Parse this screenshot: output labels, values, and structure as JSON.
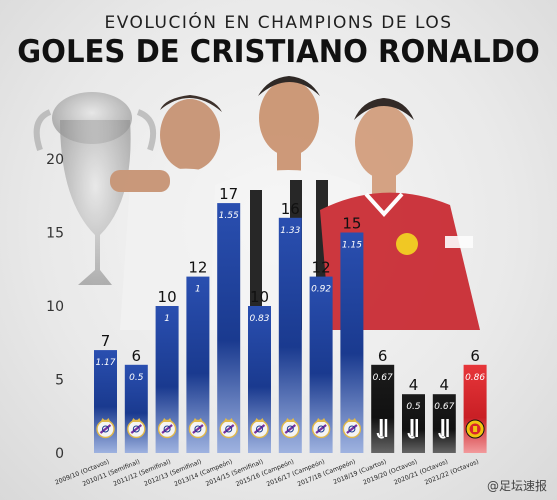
{
  "header": {
    "subtitle": "EVOLUCIÓN EN CHAMPIONS DE LOS",
    "title": "GOLES DE CRISTIANO RONALDO"
  },
  "watermark": "@足坛速报",
  "colors": {
    "real_madrid_bar": "#1a3a8f",
    "juventus_bar": "#151515",
    "man_united_bar": "#d8262b",
    "axis_text": "#333333"
  },
  "chart_data": {
    "type": "bar",
    "title": "GOLES DE CRISTIANO RONALDO",
    "subtitle": "EVOLUCIÓN EN CHAMPIONS DE LOS",
    "xlabel": "",
    "ylabel": "",
    "ylim": [
      0,
      20
    ],
    "yticks": [
      0,
      5,
      10,
      15,
      20
    ],
    "grid": false,
    "categories": [
      "2009/10 (Octavos)",
      "2010/11 (Semifinal)",
      "2011/12 (Semifinal)",
      "2012/13 (Semifinal)",
      "2013/14 (Campeón)",
      "2014/15 (Semifinal)",
      "2015/16 (Campeón)",
      "2016/17 (Campeón)",
      "2017/18 (Campeón)",
      "2018/19 (Cuartos)",
      "2019/20 (Octavos)",
      "2020/21 (Octavos)",
      "2021/22 (Octavos)"
    ],
    "values": [
      7,
      6,
      10,
      12,
      17,
      10,
      16,
      12,
      15,
      6,
      4,
      4,
      6
    ],
    "goals_per_game": [
      "1.17",
      "0.5",
      "1",
      "1",
      "1.55",
      "0.83",
      "1.33",
      "0.92",
      "1.15",
      "0.67",
      "0.5",
      "0.67",
      "0.86"
    ],
    "clubs": [
      "real-madrid",
      "real-madrid",
      "real-madrid",
      "real-madrid",
      "real-madrid",
      "real-madrid",
      "real-madrid",
      "real-madrid",
      "real-madrid",
      "juventus",
      "juventus",
      "juventus",
      "man-united"
    ],
    "club_icons": [
      "real-madrid-crest-icon",
      "juventus-logo-icon",
      "man-united-crest-icon"
    ]
  }
}
